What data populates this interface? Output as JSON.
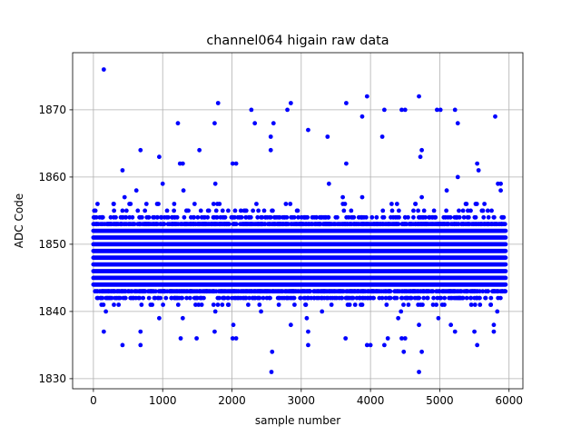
{
  "chart_data": {
    "type": "scatter",
    "title": "channel064 higain raw data",
    "xlabel": "sample number",
    "ylabel": "ADC Code",
    "xlim": [
      -300,
      6200
    ],
    "ylim": [
      1828.5,
      1878.5
    ],
    "xticks": [
      0,
      1000,
      2000,
      3000,
      4000,
      5000,
      6000
    ],
    "yticks": [
      1830,
      1840,
      1850,
      1860,
      1870
    ],
    "grid": true,
    "marker_color": "#0000ff",
    "n_samples": 5950,
    "dense_band": {
      "values": [
        1844,
        1845,
        1846,
        1847,
        1848,
        1849,
        1850,
        1851,
        1852
      ],
      "note": "nearly every sample position occupied for these ADC codes"
    },
    "sparse_levels": [
      {
        "y": 1843,
        "density": 0.5
      },
      {
        "y": 1853,
        "density": 0.5
      },
      {
        "y": 1842,
        "density": 0.18
      },
      {
        "y": 1854,
        "density": 0.18
      },
      {
        "y": 1841,
        "density": 0.05
      },
      {
        "y": 1855,
        "density": 0.05
      },
      {
        "y": 1856,
        "density": 0.025
      }
    ],
    "outliers": [
      {
        "x": 150,
        "y": 1876
      },
      {
        "x": 1800,
        "y": 1871
      },
      {
        "x": 2850,
        "y": 1871
      },
      {
        "x": 3650,
        "y": 1871
      },
      {
        "x": 2280,
        "y": 1870
      },
      {
        "x": 2800,
        "y": 1870
      },
      {
        "x": 4200,
        "y": 1870
      },
      {
        "x": 4450,
        "y": 1870
      },
      {
        "x": 4500,
        "y": 1870
      },
      {
        "x": 4960,
        "y": 1870
      },
      {
        "x": 5010,
        "y": 1870
      },
      {
        "x": 5220,
        "y": 1870
      },
      {
        "x": 3950,
        "y": 1872
      },
      {
        "x": 4700,
        "y": 1872
      },
      {
        "x": 3880,
        "y": 1869
      },
      {
        "x": 5800,
        "y": 1869
      },
      {
        "x": 1220,
        "y": 1868
      },
      {
        "x": 1750,
        "y": 1868
      },
      {
        "x": 2330,
        "y": 1868
      },
      {
        "x": 2600,
        "y": 1868
      },
      {
        "x": 5260,
        "y": 1868
      },
      {
        "x": 3100,
        "y": 1867
      },
      {
        "x": 2560,
        "y": 1866
      },
      {
        "x": 3380,
        "y": 1866
      },
      {
        "x": 4170,
        "y": 1866
      },
      {
        "x": 680,
        "y": 1864
      },
      {
        "x": 1530,
        "y": 1864
      },
      {
        "x": 2560,
        "y": 1864
      },
      {
        "x": 4740,
        "y": 1864
      },
      {
        "x": 950,
        "y": 1863
      },
      {
        "x": 4720,
        "y": 1863
      },
      {
        "x": 1250,
        "y": 1862
      },
      {
        "x": 1290,
        "y": 1862
      },
      {
        "x": 2010,
        "y": 1862
      },
      {
        "x": 2060,
        "y": 1862
      },
      {
        "x": 3650,
        "y": 1862
      },
      {
        "x": 5540,
        "y": 1862
      },
      {
        "x": 420,
        "y": 1861
      },
      {
        "x": 5560,
        "y": 1861
      },
      {
        "x": 5260,
        "y": 1860
      },
      {
        "x": 1000,
        "y": 1859
      },
      {
        "x": 1760,
        "y": 1859
      },
      {
        "x": 3400,
        "y": 1859
      },
      {
        "x": 5840,
        "y": 1859
      },
      {
        "x": 5880,
        "y": 1859
      },
      {
        "x": 620,
        "y": 1858
      },
      {
        "x": 1300,
        "y": 1858
      },
      {
        "x": 5100,
        "y": 1858
      },
      {
        "x": 5880,
        "y": 1858
      },
      {
        "x": 450,
        "y": 1857
      },
      {
        "x": 3600,
        "y": 1857
      },
      {
        "x": 3880,
        "y": 1857
      },
      {
        "x": 4740,
        "y": 1857
      },
      {
        "x": 150,
        "y": 1837
      },
      {
        "x": 680,
        "y": 1837
      },
      {
        "x": 1750,
        "y": 1837
      },
      {
        "x": 3100,
        "y": 1837
      },
      {
        "x": 5220,
        "y": 1837
      },
      {
        "x": 5500,
        "y": 1837
      },
      {
        "x": 5780,
        "y": 1837
      },
      {
        "x": 1260,
        "y": 1836
      },
      {
        "x": 1490,
        "y": 1836
      },
      {
        "x": 2010,
        "y": 1836
      },
      {
        "x": 2060,
        "y": 1836
      },
      {
        "x": 3640,
        "y": 1836
      },
      {
        "x": 4250,
        "y": 1836
      },
      {
        "x": 4450,
        "y": 1836
      },
      {
        "x": 4500,
        "y": 1836
      },
      {
        "x": 420,
        "y": 1835
      },
      {
        "x": 680,
        "y": 1835
      },
      {
        "x": 3100,
        "y": 1835
      },
      {
        "x": 3950,
        "y": 1835
      },
      {
        "x": 4000,
        "y": 1835
      },
      {
        "x": 4200,
        "y": 1835
      },
      {
        "x": 5540,
        "y": 1835
      },
      {
        "x": 2580,
        "y": 1834
      },
      {
        "x": 4480,
        "y": 1834
      },
      {
        "x": 4740,
        "y": 1834
      },
      {
        "x": 2570,
        "y": 1831
      },
      {
        "x": 4700,
        "y": 1831
      },
      {
        "x": 2850,
        "y": 1838
      },
      {
        "x": 2020,
        "y": 1838
      },
      {
        "x": 4700,
        "y": 1838
      },
      {
        "x": 5160,
        "y": 1838
      },
      {
        "x": 5780,
        "y": 1838
      },
      {
        "x": 950,
        "y": 1839
      },
      {
        "x": 1290,
        "y": 1839
      },
      {
        "x": 3080,
        "y": 1839
      },
      {
        "x": 4400,
        "y": 1839
      },
      {
        "x": 4980,
        "y": 1839
      },
      {
        "x": 180,
        "y": 1840
      },
      {
        "x": 1760,
        "y": 1840
      },
      {
        "x": 2420,
        "y": 1840
      },
      {
        "x": 3300,
        "y": 1840
      },
      {
        "x": 4440,
        "y": 1840
      },
      {
        "x": 5830,
        "y": 1840
      }
    ]
  }
}
